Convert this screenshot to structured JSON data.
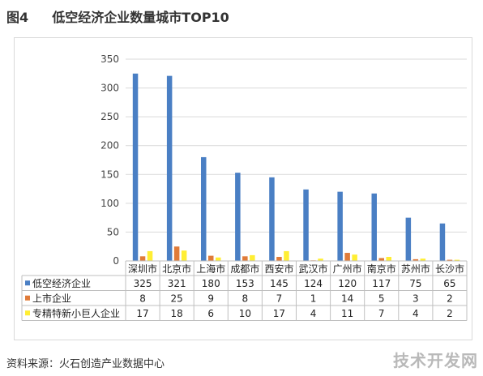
{
  "figure": {
    "label": "图4",
    "title": "低空经济企业数量城市TOP10"
  },
  "source_text": "资料来源：火石创造产业数据中心",
  "watermark_text": "技术开发网",
  "colors": {
    "series": [
      "#4a7fc4",
      "#e07b39",
      "#ffee33"
    ],
    "grid": "#d9d9d9",
    "text": "#333333"
  },
  "chart_data": {
    "type": "bar",
    "categories": [
      "深圳市",
      "北京市",
      "上海市",
      "成都市",
      "西安市",
      "武汉市",
      "广州市",
      "南京市",
      "苏州市",
      "长沙市"
    ],
    "series": [
      {
        "name": "低空经济企业",
        "values": [
          325,
          321,
          180,
          153,
          145,
          124,
          120,
          117,
          75,
          65
        ]
      },
      {
        "name": "上市企业",
        "values": [
          8,
          25,
          9,
          8,
          7,
          1,
          14,
          5,
          3,
          2
        ]
      },
      {
        "name": "专精特新小巨人企业",
        "values": [
          17,
          18,
          6,
          10,
          17,
          4,
          11,
          7,
          4,
          2
        ]
      }
    ],
    "ylim": [
      0,
      350
    ],
    "yticks": [
      0,
      50,
      100,
      150,
      200,
      250,
      300,
      350
    ],
    "grid": true,
    "legend": "data-table-rows"
  }
}
